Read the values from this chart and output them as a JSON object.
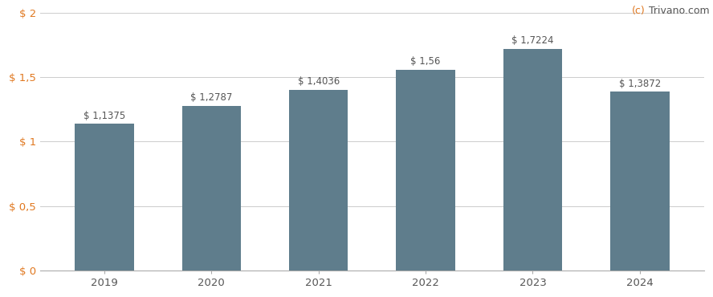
{
  "categories": [
    "2019",
    "2020",
    "2021",
    "2022",
    "2023",
    "2024"
  ],
  "values": [
    1.1375,
    1.2787,
    1.4036,
    1.56,
    1.7224,
    1.3872
  ],
  "labels": [
    "$ 1,1375",
    "$ 1,2787",
    "$ 1,4036",
    "$ 1,56",
    "$ 1,7224",
    "$ 1,3872"
  ],
  "bar_color": "#5f7d8c",
  "background_color": "#ffffff",
  "grid_color": "#cccccc",
  "ylim": [
    0,
    2.0
  ],
  "yticks": [
    0,
    0.5,
    1.0,
    1.5,
    2.0
  ],
  "ytick_labels": [
    "$ 0",
    "$ 0,5",
    "$ 1",
    "$ 1,5",
    "$ 2"
  ],
  "ytick_color": "#e07820",
  "label_color": "#555555",
  "xtick_color": "#555555",
  "watermark_c_color": "#e07820",
  "watermark_text_color": "#555555",
  "label_fontsize": 8.5,
  "tick_fontsize": 9.5,
  "watermark_fontsize": 9
}
